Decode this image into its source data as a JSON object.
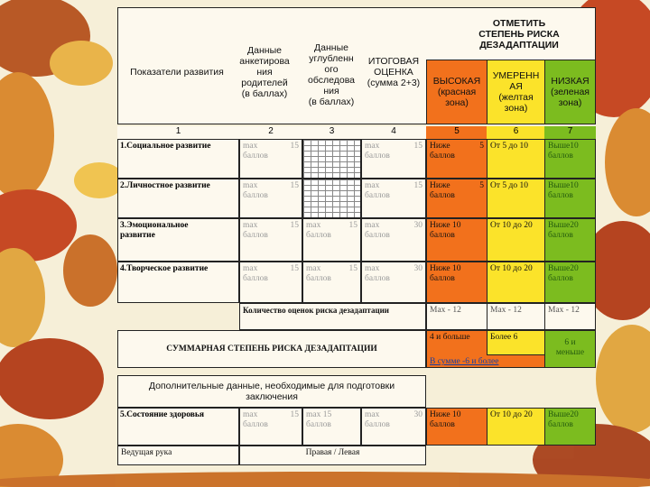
{
  "header": {
    "top_title": "ОТМЕТИТЬ\nСТЕПЕНЬ РИСКА\nДЕЗАДАПТАЦИИ",
    "col1": "Показатели развития",
    "col2": "Данные\nанкетирова\nния\nродителей\n(в баллах)",
    "col3": "Данные\nуглубленн\nого\nобследова\nния\n(в баллах)",
    "col4": "ИТОГОВАЯ\nОЦЕНКА\n(сумма 2+3)",
    "col5": "ВЫСОКАЯ\n(красная\nзона)",
    "col6": "УМЕРЕНН\nАЯ\n(желтая\nзона)",
    "col7": "НИЗКАЯ\n(зеленая\nзона)",
    "numbers": [
      "1",
      "2",
      "3",
      "4",
      "5",
      "6",
      "7"
    ]
  },
  "rows": [
    {
      "label": "1.Социальное развитие",
      "c2": "max\nбаллов",
      "c2n": "15",
      "c3": "",
      "c3n": "",
      "c4": "max\nбаллов",
      "c4n": "15",
      "c5": "Ниже\nбаллов",
      "c5n": "5",
      "c6": "От 5 до 10",
      "c7": "Выше10\nбаллов"
    },
    {
      "label": "2.Личностное развитие",
      "c2": "max\nбаллов",
      "c2n": "15",
      "c3": "",
      "c3n": "",
      "c4": "max\nбаллов",
      "c4n": "15",
      "c5": "Ниже\nбаллов",
      "c5n": "5",
      "c6": "От 5 до 10",
      "c7": "Выше10\nбаллов"
    },
    {
      "label": "3.Эмоциональное\nразвитие",
      "c2": "max\nбаллов",
      "c2n": "15",
      "c3": "max\nбаллов",
      "c3n": "15",
      "c4": "max\nбаллов",
      "c4n": "30",
      "c5": "Ниже 10\nбаллов",
      "c5n": "",
      "c6": "От 10 до 20",
      "c7": "Выше20\nбаллов"
    },
    {
      "label": "4.Творческое развитие",
      "c2": "max\nбаллов",
      "c2n": "15",
      "c3": "max\nбаллов",
      "c3n": "15",
      "c4": "max\nбаллов",
      "c4n": "30",
      "c5": "Ниже 10\nбаллов",
      "c5n": "",
      "c6": "От 10 до 20",
      "c7": "Выше20\nбаллов"
    }
  ],
  "count_row": {
    "label": "Количество оценок риска дезадаптации",
    "c5": "Мах - 12",
    "c6": "Мах - 12",
    "c7": "Мах - 12"
  },
  "summary_row": {
    "label": "СУММАРНАЯ СТЕПЕНЬ РИСКА ДЕЗАДАПТАЦИИ",
    "c5": "4 и больше",
    "c5b": "В сумме -6 и более",
    "c6": "Более 6",
    "c7": "6 и\nменьше"
  },
  "extra": {
    "title": "Дополнительные данные, необходимые для подготовки\nзаключения",
    "health": {
      "label": "5.Состояние здоровья",
      "c2": "max\nбаллов",
      "c2n": "15",
      "c3": "max 15 баллов",
      "c4": "max\nбаллов",
      "c4n": "30",
      "c5": "Ниже 10\nбаллов",
      "c6": "От 10 до 20",
      "c7": "Выше20\nбаллов"
    },
    "hand": {
      "label": "Ведущая рука",
      "value": "Правая / Левая"
    }
  },
  "colors": {
    "red": "#f2711c",
    "yellow": "#fbe32a",
    "green": "#7cbc1f",
    "paper": "#f6efd8"
  }
}
